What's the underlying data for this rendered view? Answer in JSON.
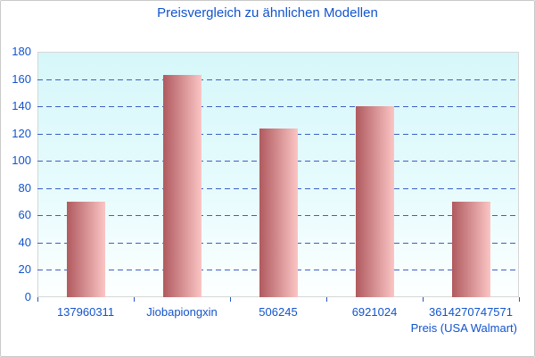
{
  "chart_data": {
    "type": "bar",
    "title": "Preisvergleich zu ähnlichen Modellen",
    "categories": [
      "137960311",
      "Jiobapiongxin",
      "506245",
      "6921024",
      "3614270747571"
    ],
    "values": [
      70,
      163,
      124,
      140,
      70
    ],
    "xlabel": "Preis (USA Walmart)",
    "ylabel": "",
    "ylim": [
      0,
      180
    ],
    "ytick_step": 20,
    "yticks": [
      0,
      20,
      40,
      60,
      80,
      100,
      120,
      140,
      160,
      180
    ],
    "grid": true,
    "grid_style": "dashed",
    "legend": "none"
  },
  "colors": {
    "text": "#1254cc",
    "grid": "#3c5fc6",
    "tick": "#2456c4",
    "bar_gradient_start": "#b05a5f",
    "bar_gradient_end": "#fbc5c4",
    "plot_bg_top": "#d6f7fa",
    "plot_bg_mid": "#e6fbfd",
    "plot_bg_bottom": "#fdffff",
    "plot_border": "#d6d6d6",
    "frame_border": "#c9c9c9"
  }
}
